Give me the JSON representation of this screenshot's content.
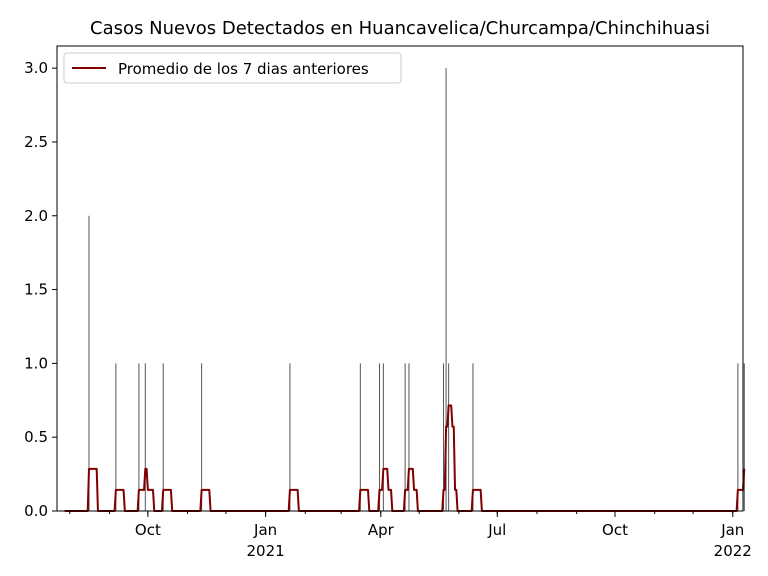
{
  "chart_data": {
    "type": "bar",
    "title": "Casos Nuevos Detectados en Huancavelica/Churcampa/Chinchihuasi",
    "xlabel": "",
    "ylabel": "",
    "ylim": [
      0,
      3.15
    ],
    "xlim": [
      "2020-07-22",
      "2022-01-09"
    ],
    "yticks": [
      "0.0",
      "0.5",
      "1.0",
      "1.5",
      "2.0",
      "2.5",
      "3.0"
    ],
    "ytick_values": [
      0,
      0.5,
      1.0,
      1.5,
      2.0,
      2.5,
      3.0
    ],
    "xticks": [
      {
        "date": "2020-10-01",
        "label": "Oct",
        "sublabel": ""
      },
      {
        "date": "2021-01-01",
        "label": "Jan",
        "sublabel": "2021"
      },
      {
        "date": "2021-04-01",
        "label": "Apr",
        "sublabel": ""
      },
      {
        "date": "2021-07-01",
        "label": "Jul",
        "sublabel": ""
      },
      {
        "date": "2021-10-01",
        "label": "Oct",
        "sublabel": ""
      },
      {
        "date": "2022-01-01",
        "label": "Jan",
        "sublabel": "2022"
      }
    ],
    "legend": {
      "label": "Promedio de los 7 dias anteriores",
      "position": "top-left"
    },
    "series": [
      {
        "kind": "bars",
        "color": "#555555",
        "points": [
          {
            "date": "2020-08-16",
            "value": 2
          },
          {
            "date": "2020-09-06",
            "value": 1
          },
          {
            "date": "2020-09-24",
            "value": 1
          },
          {
            "date": "2020-09-29",
            "value": 1
          },
          {
            "date": "2020-10-13",
            "value": 1
          },
          {
            "date": "2020-11-12",
            "value": 1
          },
          {
            "date": "2021-01-20",
            "value": 1
          },
          {
            "date": "2021-03-16",
            "value": 1
          },
          {
            "date": "2021-03-31",
            "value": 1
          },
          {
            "date": "2021-04-03",
            "value": 1
          },
          {
            "date": "2021-04-20",
            "value": 1
          },
          {
            "date": "2021-04-23",
            "value": 1
          },
          {
            "date": "2021-05-20",
            "value": 1
          },
          {
            "date": "2021-05-22",
            "value": 3
          },
          {
            "date": "2021-05-24",
            "value": 1
          },
          {
            "date": "2021-06-12",
            "value": 1
          },
          {
            "date": "2022-01-05",
            "value": 1
          },
          {
            "date": "2022-01-10",
            "value": 1
          }
        ]
      },
      {
        "kind": "line",
        "name": "Promedio de los 7 dias anteriores",
        "color": "#800000",
        "rolling_window": 7,
        "start": "2020-07-28",
        "end": "2022-01-10"
      }
    ]
  }
}
